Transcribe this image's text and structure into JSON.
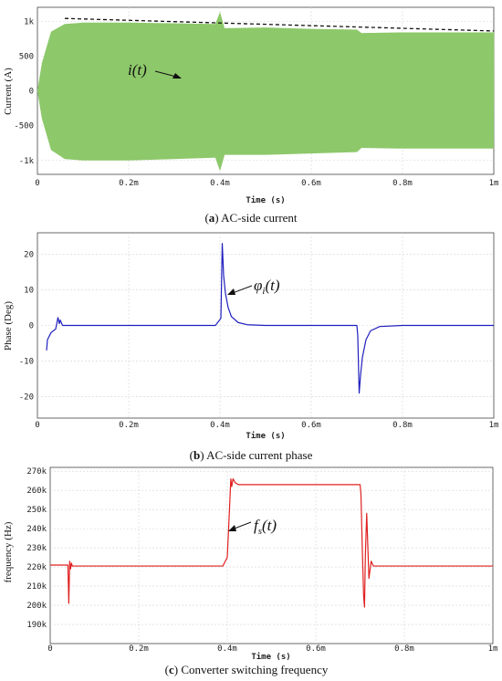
{
  "chart_data": [
    {
      "type": "line",
      "caption_label": "a",
      "caption_text": " AC-side current",
      "xlabel": "Time (s)",
      "ylabel": "Current (A)",
      "xlim": [
        0,
        0.001
      ],
      "ylim": [
        -1200,
        1200
      ],
      "x_ticks": [
        0,
        0.0002,
        0.0004,
        0.0006,
        0.0008,
        0.001
      ],
      "x_tick_labels": [
        "0",
        "0.2m",
        "0.4m",
        "0.6m",
        "0.8m",
        "1m"
      ],
      "y_ticks": [
        1000,
        500,
        0,
        -500,
        -1000
      ],
      "y_tick_labels": [
        "1k",
        "500",
        "0",
        "-500",
        "-1k"
      ],
      "grid": true,
      "color": "#8dc86a",
      "envelope_color": "#111111",
      "annotation_base": "i",
      "annotation_sub": "",
      "annotation_arg": "(t)",
      "series": [
        {
          "x": [
            0,
            1e-05,
            3e-05,
            6e-05,
            0.0001,
            0.0002,
            0.0003,
            0.00039,
            0.0004,
            0.00041,
            0.0005,
            0.0006,
            0.0007,
            0.00071,
            0.0008,
            0.0009,
            0.001
          ],
          "upper": [
            0,
            400,
            850,
            960,
            980,
            980,
            970,
            960,
            1130,
            900,
            910,
            890,
            880,
            830,
            840,
            840,
            840
          ],
          "lower": [
            0,
            -400,
            -850,
            -980,
            -1000,
            -1000,
            -980,
            -960,
            -1150,
            -920,
            -920,
            -900,
            -880,
            -820,
            -830,
            -830,
            -830
          ]
        },
        {
          "x": [
            6e-05,
            0.001
          ],
          "y": [
            1040,
            860
          ]
        }
      ]
    },
    {
      "type": "line",
      "caption_label": "b",
      "caption_text": " AC-side current phase",
      "xlabel": "Time (s)",
      "ylabel": "Phase (Deg)",
      "xlim": [
        0,
        0.001
      ],
      "ylim": [
        -26,
        26
      ],
      "x_ticks": [
        0,
        0.0002,
        0.0004,
        0.0006,
        0.0008,
        0.001
      ],
      "x_tick_labels": [
        "0",
        "0.2m",
        "0.4m",
        "0.6m",
        "0.8m",
        "1m"
      ],
      "y_ticks": [
        20,
        10,
        0,
        -10,
        -20
      ],
      "y_tick_labels": [
        "20",
        "10",
        "0",
        "-10",
        "-20"
      ],
      "grid": true,
      "color": "#1f1fbf",
      "annotation_base": "φ",
      "annotation_sub": "i",
      "annotation_arg": "(t)",
      "series": [
        {
          "x": [
            2e-05,
            2.2e-05,
            3e-05,
            4e-05,
            4.5e-05,
            4.8e-05,
            5e-05,
            5.5e-05,
            6e-05,
            0.0001,
            0.0002,
            0.0003,
            0.00039,
            0.000402,
            0.000405,
            0.000408,
            0.000412,
            0.000418,
            0.000425,
            0.00044,
            0.00046,
            0.0005,
            0.0006,
            0.0007,
            0.000702,
            0.000705,
            0.000708,
            0.000712,
            0.00072,
            0.00073,
            0.00075,
            0.0008,
            0.0009,
            0.001
          ],
          "y": [
            -7,
            -4,
            -2,
            -1,
            2.2,
            0.5,
            1.5,
            0,
            0,
            0,
            0,
            0,
            0,
            2,
            23,
            14,
            9,
            5,
            2.5,
            0.8,
            0.2,
            0,
            0,
            0,
            -3,
            -19,
            -14,
            -9,
            -4,
            -1.5,
            -0.3,
            0,
            0,
            0
          ]
        }
      ]
    },
    {
      "type": "line",
      "caption_label": "c",
      "caption_text": " Converter switching frequency",
      "xlabel": "Time (s)",
      "ylabel": "frequency (Hz)",
      "xlim": [
        0,
        0.001
      ],
      "ylim": [
        180000,
        272000
      ],
      "x_ticks": [
        0,
        0.0002,
        0.0004,
        0.0006,
        0.0008,
        0.001
      ],
      "x_tick_labels": [
        "0",
        "0.2m",
        "0.4m",
        "0.6m",
        "0.8m",
        "1m"
      ],
      "y_ticks": [
        270000,
        260000,
        250000,
        240000,
        230000,
        220000,
        210000,
        200000,
        190000
      ],
      "y_tick_labels": [
        "270k",
        "260k",
        "250k",
        "240k",
        "230k",
        "220k",
        "210k",
        "200k",
        "190k"
      ],
      "grid": true,
      "color": "#e02020",
      "annotation_base": "f",
      "annotation_sub": "s",
      "annotation_arg": "(t)",
      "series": [
        {
          "x": [
            0,
            4e-05,
            4.2e-05,
            4.4e-05,
            4.6e-05,
            4.8e-05,
            5e-05,
            5.2e-05,
            0.0001,
            0.0002,
            0.0003,
            0.00039,
            0.0004,
            0.000405,
            0.000408,
            0.00041,
            0.000413,
            0.000418,
            0.000425,
            0.00045,
            0.0005,
            0.0006,
            0.0007,
            0.000702,
            0.000705,
            0.000708,
            0.00071,
            0.000712,
            0.000715,
            0.00072,
            0.000725,
            0.00073,
            0.0008,
            0.0009,
            0.001
          ],
          "y": [
            221000,
            221000,
            201000,
            223000,
            219000,
            222000,
            220500,
            220500,
            220500,
            220500,
            220500,
            220500,
            225000,
            250000,
            266000,
            262000,
            266000,
            264000,
            263000,
            263000,
            263000,
            263000,
            263000,
            258000,
            230000,
            205000,
            199000,
            226000,
            248000,
            214000,
            223000,
            220500,
            220500,
            220500,
            220500
          ]
        }
      ]
    }
  ]
}
